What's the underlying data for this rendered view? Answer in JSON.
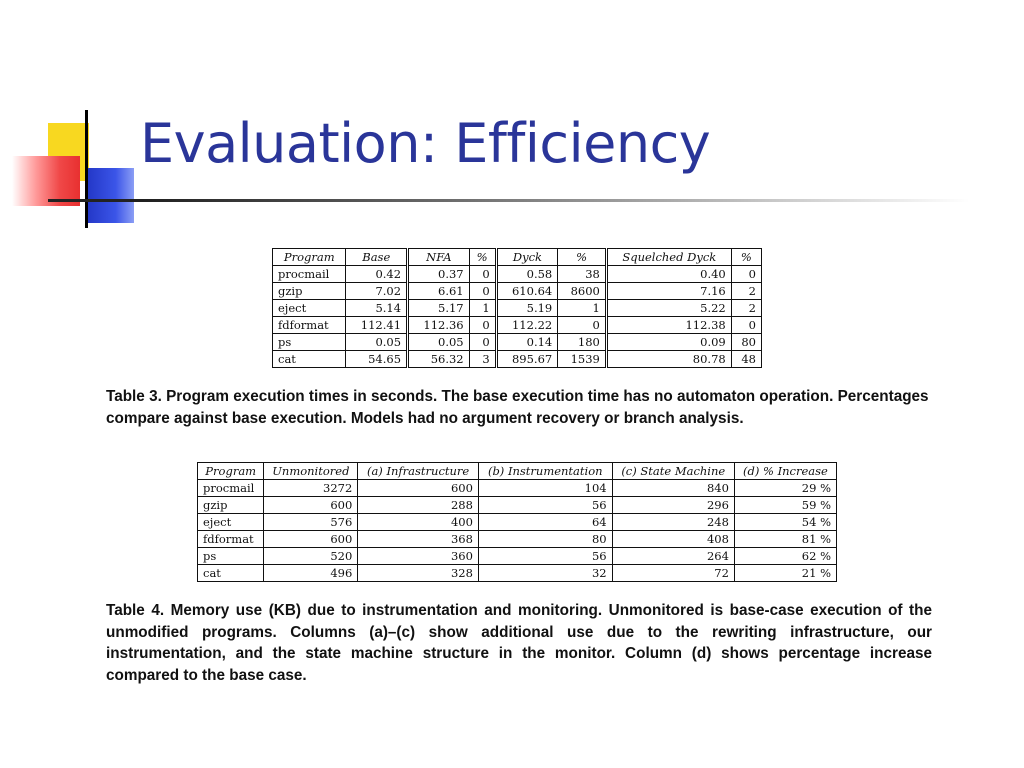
{
  "slide": {
    "title": "Evaluation: Efficiency"
  },
  "table3": {
    "headers": [
      "Program",
      "Base",
      "NFA",
      "%",
      "Dyck",
      "%",
      "Squelched Dyck",
      "%"
    ],
    "rows": [
      [
        "procmail",
        "0.42",
        "0.37",
        "0",
        "0.58",
        "38",
        "0.40",
        "0"
      ],
      [
        "gzip",
        "7.02",
        "6.61",
        "0",
        "610.64",
        "8600",
        "7.16",
        "2"
      ],
      [
        "eject",
        "5.14",
        "5.17",
        "1",
        "5.19",
        "1",
        "5.22",
        "2"
      ],
      [
        "fdformat",
        "112.41",
        "112.36",
        "0",
        "112.22",
        "0",
        "112.38",
        "0"
      ],
      [
        "ps",
        "0.05",
        "0.05",
        "0",
        "0.14",
        "180",
        "0.09",
        "80"
      ],
      [
        "cat",
        "54.65",
        "56.32",
        "3",
        "895.67",
        "1539",
        "80.78",
        "48"
      ]
    ],
    "caption": "Table 3. Program execution times in seconds. The base execution time has no automaton operation. Percentages compare against base execution. Models had no argument recovery or branch analysis."
  },
  "table4": {
    "headers": [
      "Program",
      "Unmonitored",
      "(a) Infrastructure",
      "(b) Instrumentation",
      "(c) State Machine",
      "(d) % Increase"
    ],
    "rows": [
      [
        "procmail",
        "3272",
        "600",
        "104",
        "840",
        "29 %"
      ],
      [
        "gzip",
        "600",
        "288",
        "56",
        "296",
        "59 %"
      ],
      [
        "eject",
        "576",
        "400",
        "64",
        "248",
        "54 %"
      ],
      [
        "fdformat",
        "600",
        "368",
        "80",
        "408",
        "81 %"
      ],
      [
        "ps",
        "520",
        "360",
        "56",
        "264",
        "62 %"
      ],
      [
        "cat",
        "496",
        "328",
        "32",
        "72",
        "21 %"
      ]
    ],
    "caption": "Table 4. Memory use (KB) due to instrumentation and monitoring. Unmonitored is base-case execution of the unmodified programs. Columns (a)–(c) show additional use due to the rewriting infrastructure, our instrumentation, and the state machine structure in the monitor. Column (d) shows percentage increase compared to the base case."
  }
}
